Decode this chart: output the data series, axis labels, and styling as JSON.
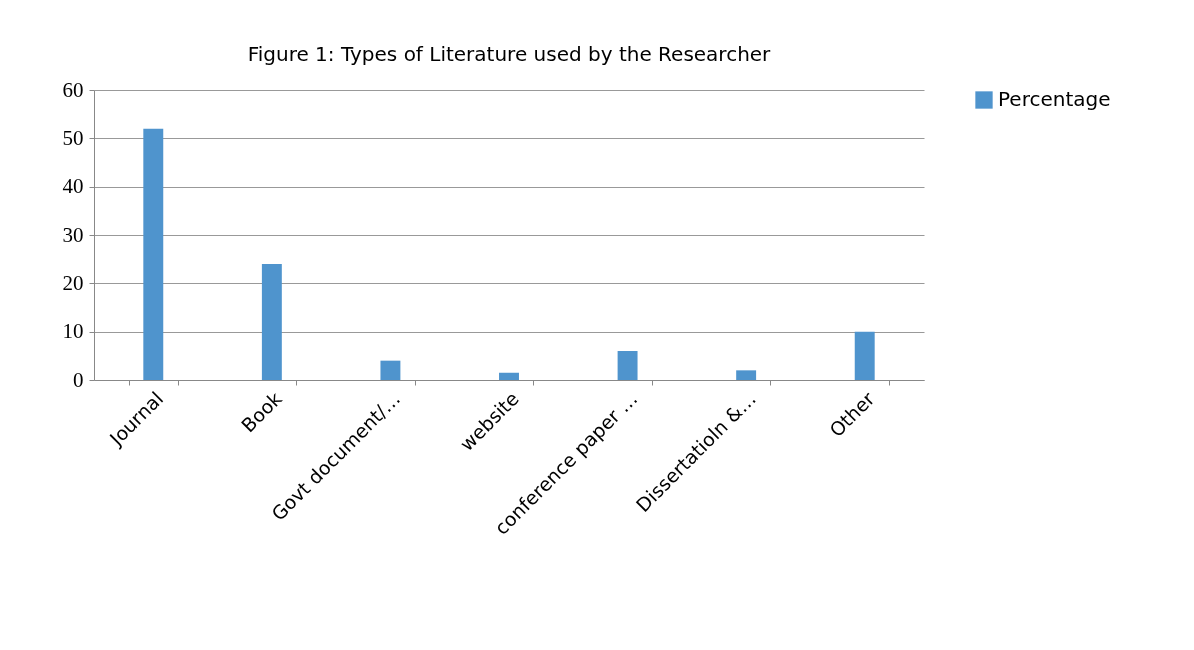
{
  "chart_data": {
    "type": "bar",
    "title": "Figure 1: Types of Literature used by the Researcher",
    "categories": [
      "Journal",
      "Book",
      "Govt document/…",
      "website",
      "conference paper …",
      "Dissertatioln &…",
      "Other"
    ],
    "series": [
      {
        "name": "Percentage",
        "color": "#4f94cd",
        "values": [
          52,
          24,
          4,
          1.5,
          6,
          2,
          10
        ]
      }
    ],
    "ylim": [
      0,
      60
    ],
    "yticks": [
      0,
      10,
      20,
      30,
      40,
      50,
      60
    ],
    "grid": "y",
    "legend": "right"
  }
}
